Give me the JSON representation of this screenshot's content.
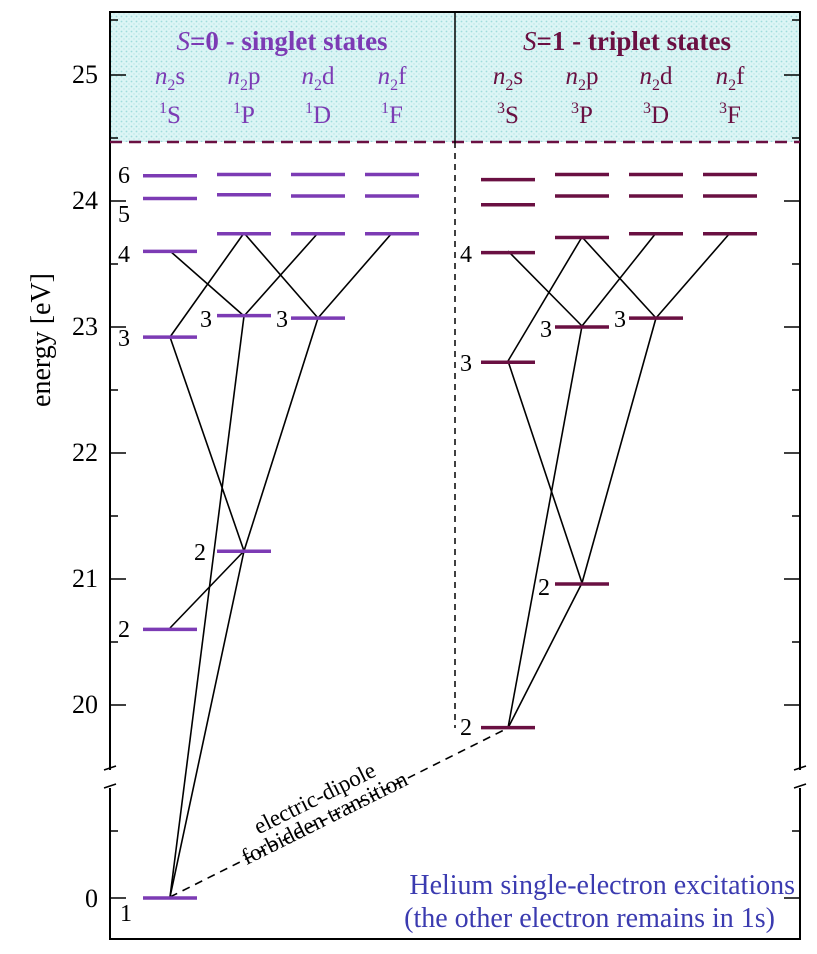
{
  "colors": {
    "singlet": "#7c3bb4",
    "triplet": "#6a1042",
    "header_bg": "#d8f4f4",
    "note": "#3b3bb0",
    "line": "#000000"
  },
  "axis": {
    "label": "energy  [eV]",
    "ticks": [
      "0",
      "20",
      "21",
      "22",
      "23",
      "24",
      "25"
    ],
    "scale": "broken: 0 then 20–25.5 eV"
  },
  "header": {
    "singlet": {
      "title_s": "S",
      "title_eq": "=0 - ",
      "title_rest": "singlet states",
      "columns": [
        {
          "n": "n",
          "sub": "2",
          "l": "s",
          "sup": "1",
          "term": "S"
        },
        {
          "n": "n",
          "sub": "2",
          "l": "p",
          "sup": "1",
          "term": "P"
        },
        {
          "n": "n",
          "sub": "2",
          "l": "d",
          "sup": "1",
          "term": "D"
        },
        {
          "n": "n",
          "sub": "2",
          "l": "f",
          "sup": "1",
          "term": "F"
        }
      ]
    },
    "triplet": {
      "title_s": "S",
      "title_eq": "=1 - ",
      "title_rest": "triplet states",
      "columns": [
        {
          "n": "n",
          "sub": "2",
          "l": "s",
          "sup": "3",
          "term": "S"
        },
        {
          "n": "n",
          "sub": "2",
          "l": "p",
          "sup": "3",
          "term": "P"
        },
        {
          "n": "n",
          "sub": "2",
          "l": "d",
          "sup": "3",
          "term": "D"
        },
        {
          "n": "n",
          "sub": "2",
          "l": "f",
          "sup": "3",
          "term": "F"
        }
      ]
    }
  },
  "levels": {
    "singlet": [
      {
        "term": "1S",
        "n": "1",
        "energy": 0
      },
      {
        "term": "1S",
        "n": "2",
        "energy": 20.6
      },
      {
        "term": "1S",
        "n": "3",
        "energy": 22.92
      },
      {
        "term": "1S",
        "n": "4",
        "energy": 23.6
      },
      {
        "term": "1S",
        "n": "5",
        "energy": 24.02
      },
      {
        "term": "1S",
        "n": "6",
        "energy": 24.2
      },
      {
        "term": "1P",
        "n": "2",
        "energy": 21.22
      },
      {
        "term": "1P",
        "n": "3",
        "energy": 23.09
      },
      {
        "term": "1P",
        "n": "4",
        "energy": 23.74
      },
      {
        "term": "1P",
        "n": "5",
        "energy": 24.05
      },
      {
        "term": "1P",
        "n": "6",
        "energy": 24.21
      },
      {
        "term": "1D",
        "n": "3",
        "energy": 23.07
      },
      {
        "term": "1D",
        "n": "4",
        "energy": 23.74
      },
      {
        "term": "1D",
        "n": "5",
        "energy": 24.04
      },
      {
        "term": "1D",
        "n": "6",
        "energy": 24.21
      },
      {
        "term": "1F",
        "n": "4",
        "energy": 23.74
      },
      {
        "term": "1F",
        "n": "5",
        "energy": 24.04
      },
      {
        "term": "1F",
        "n": "6",
        "energy": 24.21
      }
    ],
    "triplet": [
      {
        "term": "3S",
        "n": "2",
        "energy": 19.82
      },
      {
        "term": "3S",
        "n": "3",
        "energy": 22.72
      },
      {
        "term": "3S",
        "n": "4",
        "energy": 23.59
      },
      {
        "term": "3S",
        "n": "5",
        "energy": 23.97
      },
      {
        "term": "3S",
        "n": "6",
        "energy": 24.17
      },
      {
        "term": "3P",
        "n": "2",
        "energy": 20.96
      },
      {
        "term": "3P",
        "n": "3",
        "energy": 23.0
      },
      {
        "term": "3P",
        "n": "4",
        "energy": 23.71
      },
      {
        "term": "3P",
        "n": "5",
        "energy": 24.04
      },
      {
        "term": "3P",
        "n": "6",
        "energy": 24.21
      },
      {
        "term": "3D",
        "n": "3",
        "energy": 23.07
      },
      {
        "term": "3D",
        "n": "4",
        "energy": 23.74
      },
      {
        "term": "3D",
        "n": "5",
        "energy": 24.04
      },
      {
        "term": "3D",
        "n": "6",
        "energy": 24.21
      },
      {
        "term": "3F",
        "n": "4",
        "energy": 23.74
      },
      {
        "term": "3F",
        "n": "5",
        "energy": 24.04
      },
      {
        "term": "3F",
        "n": "6",
        "energy": 24.21
      }
    ]
  },
  "level_labels": [
    "1",
    "2",
    "3",
    "4",
    "5",
    "6",
    "2",
    "3",
    "3",
    "2",
    "3",
    "4",
    "2",
    "3",
    "3"
  ],
  "forbidden": {
    "line1": "electric-dipole",
    "line2": "forbidden transition"
  },
  "note": {
    "line1": "Helium single-electron excitations",
    "line2": "(the other electron remains in 1s)"
  }
}
